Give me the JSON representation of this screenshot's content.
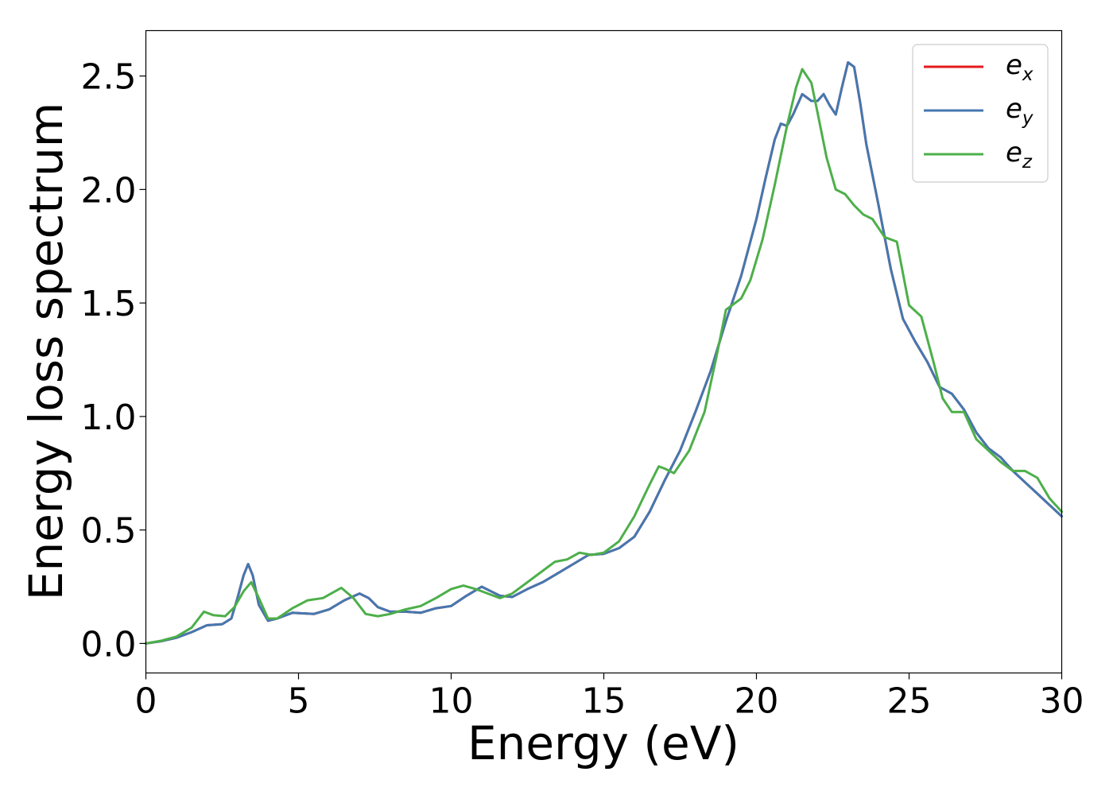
{
  "chart_data": {
    "type": "line",
    "xlabel": "Energy (eV)",
    "ylabel": "Energy loss spectrum",
    "xlim": [
      0,
      30
    ],
    "ylim": [
      -0.13,
      2.7
    ],
    "x_ticks": [
      "0",
      "5",
      "10",
      "15",
      "20",
      "25",
      "30"
    ],
    "x_tick_values": [
      0,
      5,
      10,
      15,
      20,
      25,
      30
    ],
    "y_ticks": [
      "0.0",
      "0.5",
      "1.0",
      "1.5",
      "2.0",
      "2.5"
    ],
    "y_tick_values": [
      0.0,
      0.5,
      1.0,
      1.5,
      2.0,
      2.5
    ],
    "grid": false,
    "legend_position": "top-right",
    "series": [
      {
        "name": "e_x",
        "legend_base": "e",
        "legend_sub": "x",
        "color": "#e41a1c",
        "x": [
          0,
          0.5,
          1.0,
          1.5,
          2.0,
          2.5,
          2.8,
          3.0,
          3.2,
          3.35,
          3.5,
          3.7,
          4.0,
          4.3,
          4.8,
          5.5,
          6.0,
          6.5,
          7.0,
          7.3,
          7.6,
          8.0,
          8.5,
          9.0,
          9.5,
          10.0,
          10.5,
          11.0,
          11.3,
          11.6,
          12.0,
          12.5,
          13.0,
          13.5,
          14.0,
          14.5,
          15.0,
          15.5,
          16.0,
          16.5,
          17.0,
          17.5,
          18.0,
          18.5,
          19.0,
          19.5,
          20.0,
          20.3,
          20.6,
          20.8,
          21.0,
          21.2,
          21.5,
          21.8,
          22.0,
          22.2,
          22.4,
          22.6,
          22.8,
          23.0,
          23.2,
          23.4,
          23.6,
          24.0,
          24.4,
          24.8,
          25.2,
          25.6,
          26.0,
          26.4,
          26.8,
          27.2,
          27.6,
          28.0,
          28.4,
          28.8,
          29.2,
          29.6,
          30.0
        ],
        "y": [
          0.0,
          0.01,
          0.025,
          0.05,
          0.08,
          0.085,
          0.11,
          0.2,
          0.3,
          0.35,
          0.3,
          0.17,
          0.1,
          0.11,
          0.135,
          0.13,
          0.15,
          0.19,
          0.22,
          0.2,
          0.16,
          0.14,
          0.14,
          0.135,
          0.155,
          0.165,
          0.21,
          0.25,
          0.23,
          0.21,
          0.205,
          0.24,
          0.27,
          0.31,
          0.35,
          0.39,
          0.395,
          0.42,
          0.47,
          0.58,
          0.72,
          0.85,
          1.02,
          1.2,
          1.42,
          1.62,
          1.87,
          2.05,
          2.22,
          2.29,
          2.28,
          2.33,
          2.42,
          2.39,
          2.39,
          2.42,
          2.37,
          2.33,
          2.45,
          2.56,
          2.54,
          2.38,
          2.2,
          1.93,
          1.65,
          1.43,
          1.33,
          1.24,
          1.13,
          1.1,
          1.03,
          0.93,
          0.86,
          0.82,
          0.76,
          0.71,
          0.66,
          0.61,
          0.56
        ]
      },
      {
        "name": "e_y",
        "legend_base": "e",
        "legend_sub": "y",
        "color": "#4478b0",
        "x": [
          0,
          0.5,
          1.0,
          1.5,
          2.0,
          2.5,
          2.8,
          3.0,
          3.2,
          3.35,
          3.5,
          3.7,
          4.0,
          4.3,
          4.8,
          5.5,
          6.0,
          6.5,
          7.0,
          7.3,
          7.6,
          8.0,
          8.5,
          9.0,
          9.5,
          10.0,
          10.5,
          11.0,
          11.3,
          11.6,
          12.0,
          12.5,
          13.0,
          13.5,
          14.0,
          14.5,
          15.0,
          15.5,
          16.0,
          16.5,
          17.0,
          17.5,
          18.0,
          18.5,
          19.0,
          19.5,
          20.0,
          20.3,
          20.6,
          20.8,
          21.0,
          21.2,
          21.5,
          21.8,
          22.0,
          22.2,
          22.4,
          22.6,
          22.8,
          23.0,
          23.2,
          23.4,
          23.6,
          24.0,
          24.4,
          24.8,
          25.2,
          25.6,
          26.0,
          26.4,
          26.8,
          27.2,
          27.6,
          28.0,
          28.4,
          28.8,
          29.2,
          29.6,
          30.0
        ],
        "y": [
          0.0,
          0.01,
          0.025,
          0.05,
          0.08,
          0.085,
          0.11,
          0.2,
          0.3,
          0.35,
          0.3,
          0.17,
          0.1,
          0.11,
          0.135,
          0.13,
          0.15,
          0.19,
          0.22,
          0.2,
          0.16,
          0.14,
          0.14,
          0.135,
          0.155,
          0.165,
          0.21,
          0.25,
          0.23,
          0.21,
          0.205,
          0.24,
          0.27,
          0.31,
          0.35,
          0.39,
          0.395,
          0.42,
          0.47,
          0.58,
          0.72,
          0.85,
          1.02,
          1.2,
          1.42,
          1.62,
          1.87,
          2.05,
          2.22,
          2.29,
          2.28,
          2.33,
          2.42,
          2.39,
          2.39,
          2.42,
          2.37,
          2.33,
          2.45,
          2.56,
          2.54,
          2.38,
          2.2,
          1.93,
          1.65,
          1.43,
          1.33,
          1.24,
          1.13,
          1.1,
          1.03,
          0.93,
          0.86,
          0.82,
          0.76,
          0.71,
          0.66,
          0.61,
          0.56
        ]
      },
      {
        "name": "e_z",
        "legend_base": "e",
        "legend_sub": "z",
        "color": "#4daf4a",
        "x": [
          0,
          0.5,
          1.0,
          1.5,
          1.9,
          2.2,
          2.6,
          2.9,
          3.2,
          3.45,
          3.7,
          4.0,
          4.3,
          4.8,
          5.3,
          5.8,
          6.4,
          6.8,
          7.2,
          7.6,
          8.0,
          8.5,
          9.0,
          9.5,
          10.0,
          10.4,
          10.8,
          11.2,
          11.6,
          12.0,
          12.5,
          13.0,
          13.4,
          13.8,
          14.2,
          14.6,
          15.0,
          15.5,
          16.0,
          16.5,
          16.8,
          17.0,
          17.3,
          17.8,
          18.3,
          18.7,
          19.0,
          19.2,
          19.5,
          19.8,
          20.2,
          20.6,
          21.0,
          21.3,
          21.5,
          21.8,
          22.0,
          22.3,
          22.6,
          22.9,
          23.2,
          23.5,
          23.8,
          24.2,
          24.6,
          25.0,
          25.4,
          25.8,
          26.1,
          26.4,
          26.8,
          27.2,
          27.6,
          28.0,
          28.4,
          28.8,
          29.2,
          29.6,
          30.0
        ],
        "y": [
          0.0,
          0.012,
          0.03,
          0.07,
          0.14,
          0.125,
          0.12,
          0.16,
          0.23,
          0.27,
          0.2,
          0.11,
          0.11,
          0.155,
          0.19,
          0.2,
          0.245,
          0.2,
          0.13,
          0.12,
          0.13,
          0.15,
          0.165,
          0.2,
          0.24,
          0.255,
          0.24,
          0.22,
          0.2,
          0.22,
          0.27,
          0.32,
          0.36,
          0.37,
          0.4,
          0.39,
          0.4,
          0.45,
          0.56,
          0.7,
          0.78,
          0.77,
          0.75,
          0.85,
          1.02,
          1.27,
          1.47,
          1.49,
          1.52,
          1.6,
          1.78,
          2.02,
          2.28,
          2.45,
          2.53,
          2.47,
          2.34,
          2.14,
          2.0,
          1.98,
          1.93,
          1.89,
          1.87,
          1.79,
          1.77,
          1.49,
          1.44,
          1.24,
          1.08,
          1.02,
          1.02,
          0.9,
          0.85,
          0.8,
          0.76,
          0.76,
          0.73,
          0.64,
          0.58
        ]
      }
    ]
  }
}
